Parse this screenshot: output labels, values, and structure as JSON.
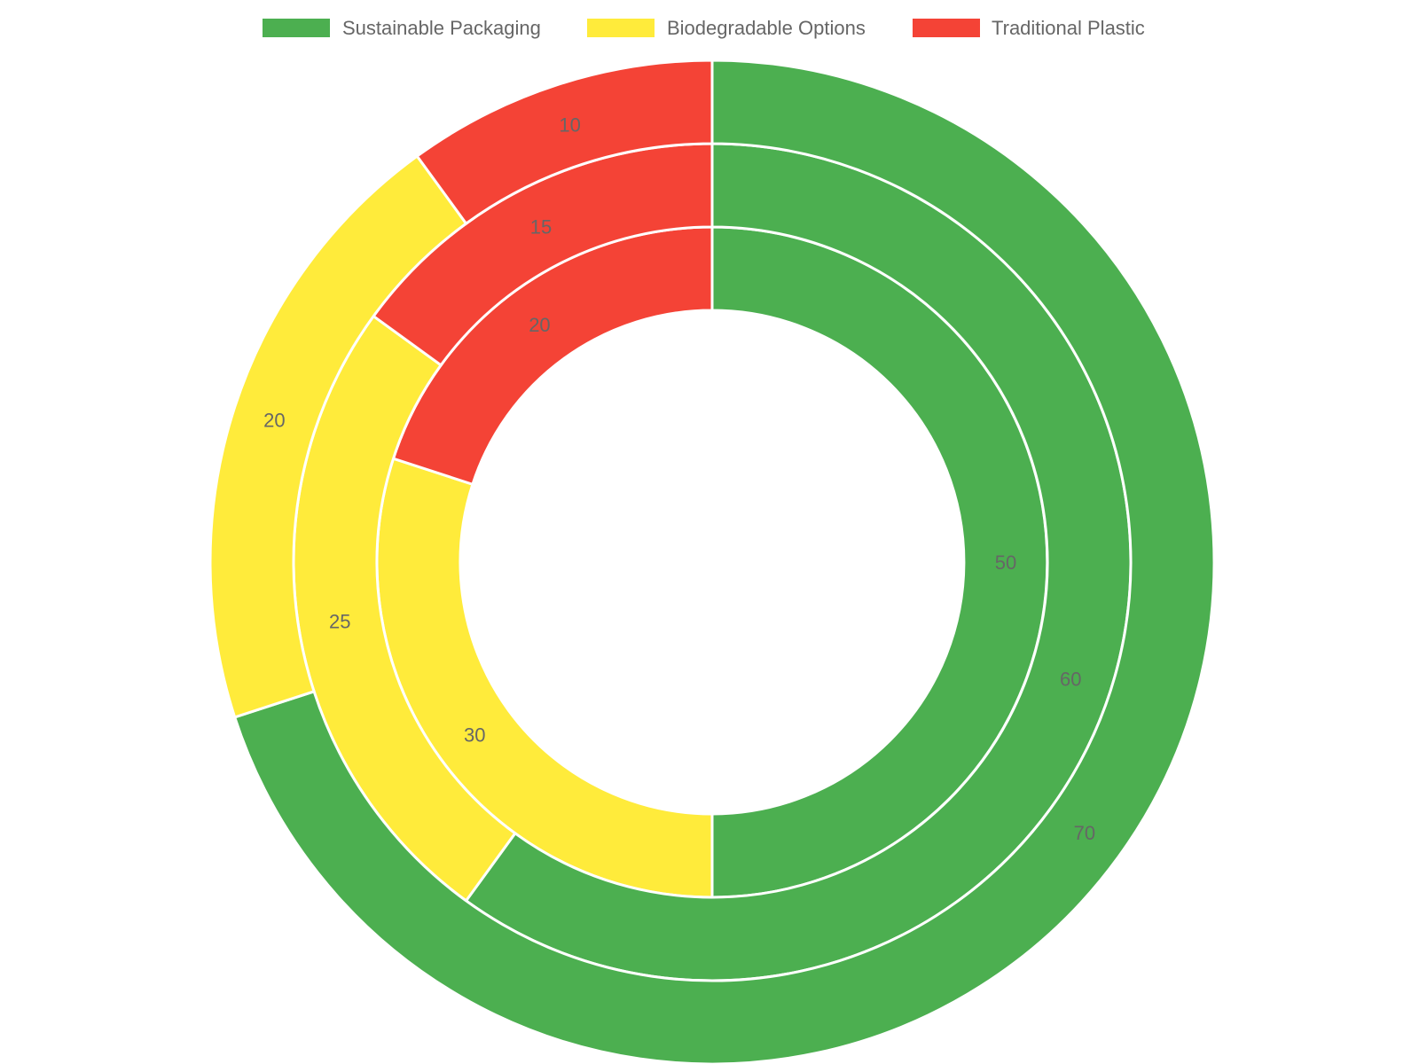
{
  "chart_data": {
    "type": "doughnut",
    "categories": [
      "Sustainable Packaging",
      "Biodegradable Options",
      "Traditional Plastic"
    ],
    "colors": [
      "#4caf50",
      "#ffeb3b",
      "#f44336"
    ],
    "legend_position": "top",
    "rings": [
      {
        "values": [
          50,
          30,
          20
        ]
      },
      {
        "values": [
          60,
          25,
          15
        ]
      },
      {
        "values": [
          70,
          20,
          10
        ]
      }
    ]
  }
}
